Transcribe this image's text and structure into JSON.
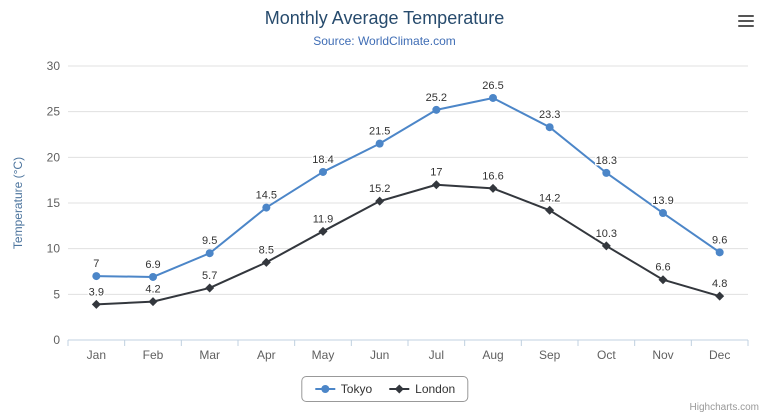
{
  "credit": {
    "label": "Highcharts.com"
  },
  "icons": {
    "context_menu": "hamburger-menu-icon"
  },
  "chart_data": {
    "type": "line",
    "title": "Monthly Average Temperature",
    "subtitle": "Source: WorldClimate.com",
    "categories": [
      "Jan",
      "Feb",
      "Mar",
      "Apr",
      "May",
      "Jun",
      "Jul",
      "Aug",
      "Sep",
      "Oct",
      "Nov",
      "Dec"
    ],
    "series": [
      {
        "name": "Tokyo",
        "color": "#4c86c8",
        "marker": "circle",
        "values": [
          7,
          6.9,
          9.5,
          14.5,
          18.4,
          21.5,
          25.2,
          26.5,
          23.3,
          18.3,
          13.9,
          9.6
        ]
      },
      {
        "name": "London",
        "color": "#33373d",
        "marker": "diamond",
        "values": [
          3.9,
          4.2,
          5.7,
          8.5,
          11.9,
          15.2,
          17,
          16.6,
          14.2,
          10.3,
          6.6,
          4.8
        ]
      }
    ],
    "xlabel": "",
    "ylabel": "Temperature (°C)",
    "ylim": [
      0,
      30
    ],
    "ytick_interval": 5,
    "grid": true,
    "data_labels": true,
    "legend_position": "bottom"
  }
}
